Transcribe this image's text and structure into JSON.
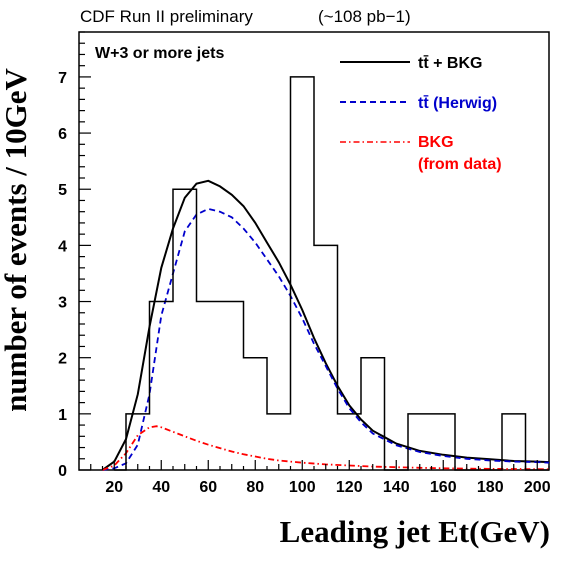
{
  "chart_data": {
    "type": "histogram",
    "header": "CDF Run II preliminary",
    "luminosity": "(~108 pb−1)",
    "annotation": "W+3 or more jets",
    "xlabel": "Leading jet Et(GeV)",
    "ylabel": "number of events / 10GeV",
    "xlim": [
      5,
      205
    ],
    "ylim": [
      0,
      7.8
    ],
    "x_ticks": [
      "20",
      "40",
      "60",
      "80",
      "100",
      "120",
      "140",
      "160",
      "180",
      "200"
    ],
    "y_ticks": [
      "0",
      "1",
      "2",
      "3",
      "4",
      "5",
      "6",
      "7"
    ],
    "data_histogram": {
      "bin_edges": [
        20,
        25,
        30,
        35,
        40,
        45,
        50,
        55,
        60,
        65,
        70,
        75,
        80,
        85,
        90,
        95,
        100,
        105,
        110,
        115,
        120,
        125,
        130,
        135,
        140,
        145,
        150,
        155,
        160,
        165,
        170,
        175,
        180,
        185,
        190,
        195,
        200,
        205
      ],
      "counts": [
        0,
        1,
        1,
        3,
        3,
        5,
        5,
        3,
        3,
        3,
        3,
        2,
        2,
        1,
        1,
        7,
        7,
        4,
        4,
        1,
        1,
        2,
        2,
        0,
        0,
        1,
        1,
        1,
        1,
        0,
        0,
        0,
        0,
        1,
        1,
        0,
        0
      ]
    },
    "series": [
      {
        "name": "tt̄ + BKG",
        "color": "#000000",
        "style": "solid",
        "x": [
          15,
          20,
          25,
          30,
          35,
          40,
          45,
          50,
          55,
          60,
          65,
          70,
          75,
          80,
          85,
          90,
          95,
          100,
          105,
          110,
          115,
          120,
          125,
          130,
          140,
          150,
          160,
          170,
          180,
          190,
          200,
          205
        ],
        "y": [
          0.0,
          0.15,
          0.55,
          1.35,
          2.55,
          3.6,
          4.3,
          4.85,
          5.1,
          5.15,
          5.05,
          4.9,
          4.7,
          4.4,
          4.05,
          3.7,
          3.3,
          2.85,
          2.35,
          1.9,
          1.5,
          1.15,
          0.9,
          0.7,
          0.47,
          0.34,
          0.27,
          0.22,
          0.19,
          0.16,
          0.15,
          0.14
        ]
      },
      {
        "name": "tt̄ (Herwig)",
        "color": "#0000cc",
        "style": "dashed",
        "x": [
          15,
          20,
          25,
          30,
          35,
          40,
          45,
          50,
          55,
          60,
          65,
          70,
          75,
          80,
          85,
          90,
          95,
          100,
          105,
          110,
          115,
          120,
          125,
          130,
          140,
          150,
          160,
          170,
          180,
          190,
          200,
          205
        ],
        "y": [
          0.0,
          0.03,
          0.12,
          0.45,
          1.35,
          2.75,
          3.5,
          4.25,
          4.55,
          4.65,
          4.6,
          4.5,
          4.3,
          4.05,
          3.75,
          3.45,
          3.1,
          2.7,
          2.25,
          1.85,
          1.45,
          1.1,
          0.85,
          0.65,
          0.44,
          0.32,
          0.25,
          0.2,
          0.17,
          0.15,
          0.14,
          0.13
        ]
      },
      {
        "name": "BKG",
        "name_line2": "(from data)",
        "color": "#ff0000",
        "style": "dashdot",
        "x": [
          15,
          20,
          25,
          30,
          35,
          38,
          40,
          45,
          50,
          55,
          60,
          65,
          70,
          75,
          80,
          85,
          90,
          95,
          100,
          110,
          120,
          130,
          140,
          150,
          160,
          170,
          180,
          190,
          200,
          205
        ],
        "y": [
          0.0,
          0.08,
          0.3,
          0.62,
          0.76,
          0.78,
          0.76,
          0.68,
          0.6,
          0.52,
          0.45,
          0.39,
          0.33,
          0.28,
          0.24,
          0.2,
          0.17,
          0.15,
          0.13,
          0.1,
          0.08,
          0.06,
          0.05,
          0.04,
          0.03,
          0.025,
          0.02,
          0.018,
          0.015,
          0.013
        ]
      }
    ],
    "legend": {
      "position": "top-right"
    },
    "grid": false
  }
}
